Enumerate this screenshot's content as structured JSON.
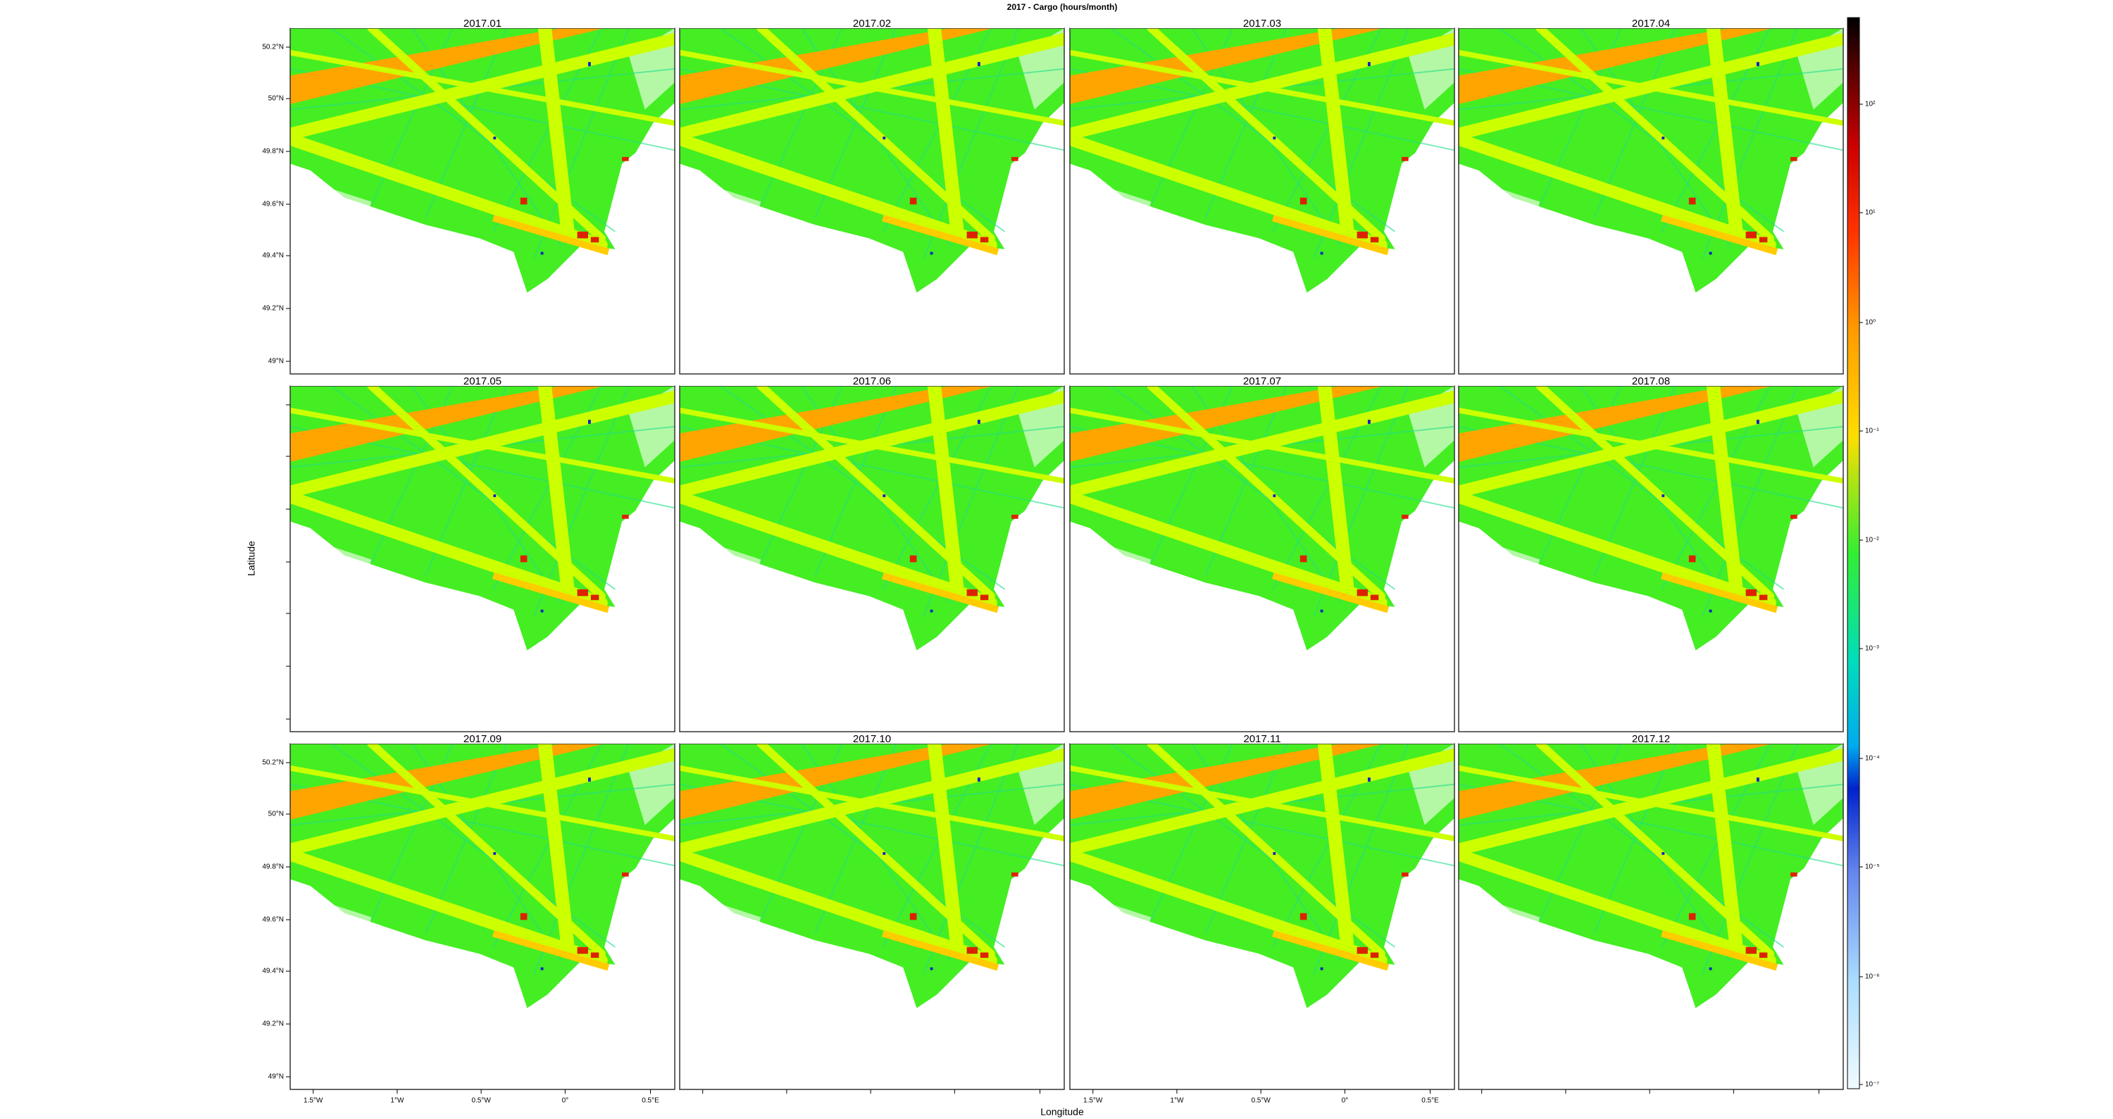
{
  "title": "2017 - Cargo (hours/month)",
  "panels": [
    "2017.01",
    "2017.02",
    "2017.03",
    "2017.04",
    "2017.05",
    "2017.06",
    "2017.07",
    "2017.08",
    "2017.09",
    "2017.10",
    "2017.11",
    "2017.12"
  ],
  "y_axis": {
    "label": "Latitude",
    "ticks": [
      "50.2°N",
      "50°N",
      "49.8°N",
      "49.6°N",
      "49.4°N",
      "49.2°N",
      "49°N"
    ]
  },
  "x_axis": {
    "label": "Longitude",
    "ticks": [
      "1.5°W",
      "1°W",
      "0.5°W",
      "0°",
      "0.5°E"
    ]
  },
  "colorbar": {
    "ticks": [
      "10²",
      "10¹",
      "10⁰",
      "10⁻¹",
      "10⁻²",
      "10⁻³",
      "10⁻⁴",
      "10⁻⁵",
      "10⁻⁶",
      "10⁻⁷"
    ]
  }
}
